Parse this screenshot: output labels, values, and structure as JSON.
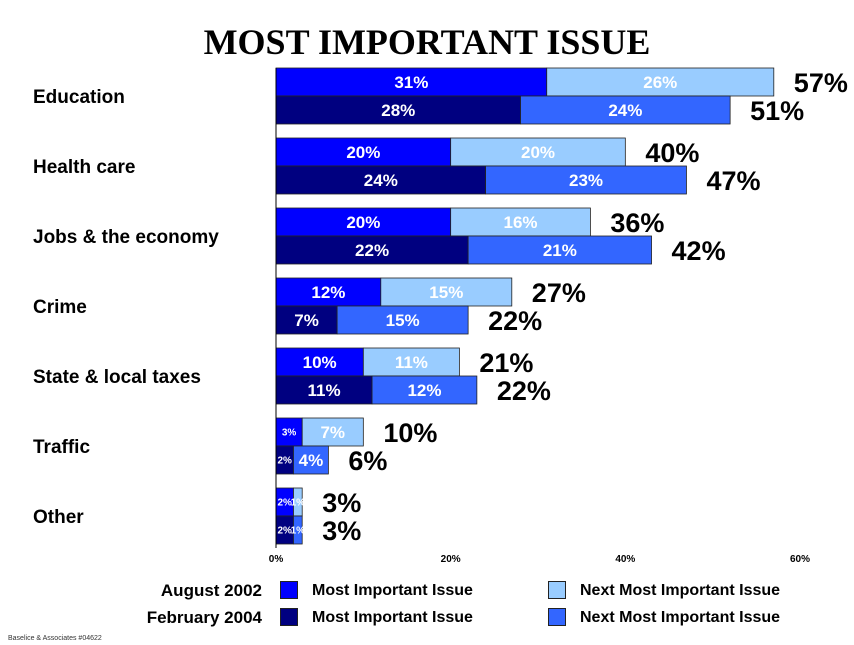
{
  "chart_data": {
    "type": "bar",
    "orientation": "horizontal",
    "stacked": true,
    "title": "MOST IMPORTANT ISSUE",
    "categories": [
      "Education",
      "Health care",
      "Jobs & the economy",
      "Crime",
      "State & local taxes",
      "Traffic",
      "Other"
    ],
    "x_ticks": [
      {
        "value": 0,
        "label": "0%"
      },
      {
        "value": 20,
        "label": "20%"
      },
      {
        "value": 40,
        "label": "40%"
      },
      {
        "value": 60,
        "label": "60%"
      }
    ],
    "xlim": [
      0,
      60
    ],
    "legend_placement": "bottom",
    "periods": [
      {
        "name": "August 2002",
        "most": [
          31,
          20,
          20,
          12,
          10,
          3,
          2
        ],
        "next": [
          26,
          20,
          16,
          15,
          11,
          7,
          1
        ],
        "total_labels": [
          "57%",
          "40%",
          "36%",
          "27%",
          "21%",
          "10%",
          "3%"
        ],
        "most_labels": [
          "31%",
          "20%",
          "20%",
          "12%",
          "10%",
          "3%",
          "2%"
        ],
        "next_labels": [
          "26%",
          "20%",
          "16%",
          "15%",
          "11%",
          "7%",
          "1%"
        ]
      },
      {
        "name": "February 2004",
        "most": [
          28,
          24,
          22,
          7,
          11,
          2,
          2
        ],
        "next": [
          24,
          23,
          21,
          15,
          12,
          4,
          1
        ],
        "total_labels": [
          "51%",
          "47%",
          "42%",
          "22%",
          "22%",
          "6%",
          "3%"
        ],
        "most_labels": [
          "28%",
          "24%",
          "22%",
          "7%",
          "11%",
          "2%",
          "2%"
        ],
        "next_labels": [
          "24%",
          "23%",
          "21%",
          "15%",
          "12%",
          "4%",
          "1%"
        ]
      }
    ],
    "colors": {
      "aug_most": "#0000ff",
      "aug_next": "#99ccff",
      "feb_most": "#000080",
      "feb_next": "#3366ff"
    }
  },
  "legend": {
    "aug_label": "August 2002",
    "feb_label": "February 2004",
    "most_label": "Most Important Issue",
    "next_label": "Next Most Important Issue"
  },
  "footer": "Baselice & Associates #04622"
}
